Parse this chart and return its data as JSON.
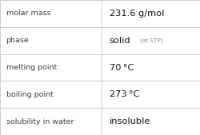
{
  "rows": [
    {
      "label": "molar mass",
      "value": "231.6 g/mol",
      "suffix": ""
    },
    {
      "label": "phase",
      "value": "solid",
      "suffix": "(at STP)"
    },
    {
      "label": "melting point",
      "value": "70 °C",
      "suffix": ""
    },
    {
      "label": "boiling point",
      "value": "273 °C",
      "suffix": ""
    },
    {
      "label": "solubility in water",
      "value": "insoluble",
      "suffix": ""
    }
  ],
  "bg_color": "#ffffff",
  "line_color": "#bbbbbb",
  "label_color": "#404040",
  "value_color": "#111111",
  "suffix_color": "#888888",
  "label_fontsize": 6.8,
  "value_fontsize": 8.2,
  "suffix_fontsize": 5.2,
  "col_split": 0.505,
  "fig_width": 2.51,
  "fig_height": 1.69,
  "dpi": 100
}
